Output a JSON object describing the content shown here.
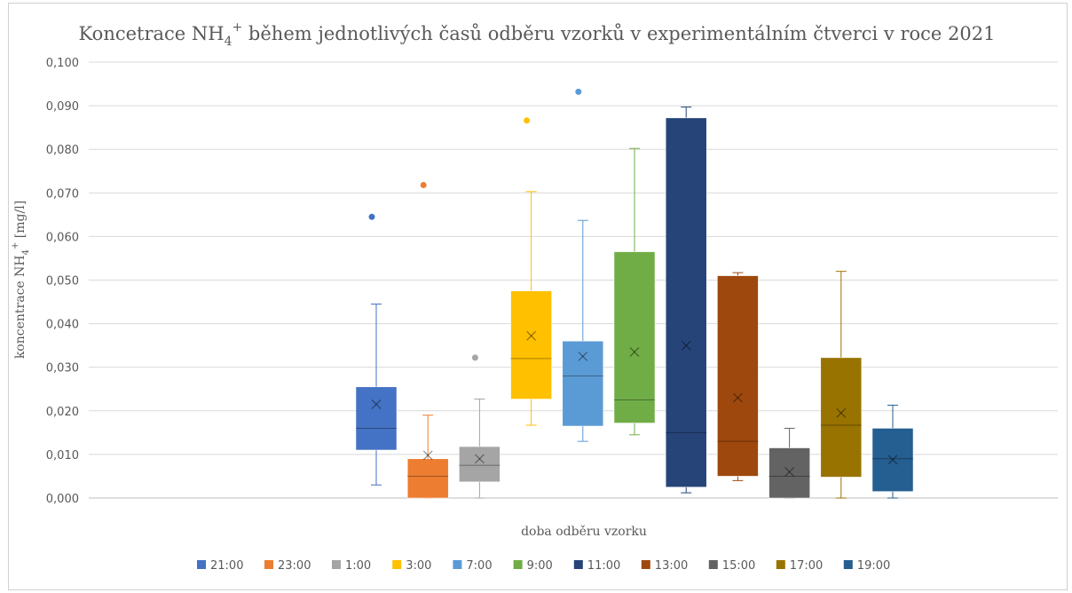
{
  "chart_data": {
    "type": "boxplot",
    "title_main": "Koncetrace NH",
    "title_sub": "4",
    "title_sup": "+",
    "title_rest": " během jednotlivých časů odběru vzorků v experimentálním čtverci v roce 2021",
    "xlabel": "doba odběru vzorku",
    "ylabel_main": "koncentrace NH",
    "ylabel_sub": "4",
    "ylabel_sup": "+",
    "ylabel_rest": " [mg/l]",
    "ylim": [
      0,
      0.1
    ],
    "yticks": [
      "0,000",
      "0,010",
      "0,020",
      "0,030",
      "0,040",
      "0,050",
      "0,060",
      "0,070",
      "0,080",
      "0,090",
      "0,100"
    ],
    "grid": true,
    "legend_position": "bottom",
    "series": [
      {
        "name": "21:00",
        "color": "#4472C4",
        "min": 0.003,
        "q1": 0.011,
        "median": 0.016,
        "q3": 0.0255,
        "max": 0.0445,
        "mean": 0.0215,
        "outliers": [
          0.0645
        ]
      },
      {
        "name": "23:00",
        "color": "#ED7D31",
        "min": 0.0,
        "q1": 0.0,
        "median": 0.005,
        "q3": 0.009,
        "max": 0.019,
        "mean": 0.0098,
        "outliers": [
          0.0718
        ]
      },
      {
        "name": "1:00",
        "color": "#A5A5A5",
        "min": 0.0,
        "q1": 0.0037,
        "median": 0.0075,
        "q3": 0.0118,
        "max": 0.0227,
        "mean": 0.009,
        "outliers": [
          0.0322
        ]
      },
      {
        "name": "3:00",
        "color": "#FFC000",
        "min": 0.0167,
        "q1": 0.0227,
        "median": 0.032,
        "q3": 0.0475,
        "max": 0.0703,
        "mean": 0.0372,
        "outliers": [
          0.0866
        ]
      },
      {
        "name": "7:00",
        "color": "#5B9BD5",
        "min": 0.013,
        "q1": 0.0165,
        "median": 0.028,
        "q3": 0.036,
        "max": 0.0637,
        "mean": 0.0325,
        "outliers": [
          0.0932
        ]
      },
      {
        "name": "9:00",
        "color": "#70AD47",
        "min": 0.0145,
        "q1": 0.0172,
        "median": 0.0225,
        "q3": 0.0565,
        "max": 0.0802,
        "mean": 0.0335,
        "outliers": []
      },
      {
        "name": "11:00",
        "color": "#264478",
        "min": 0.0012,
        "q1": 0.0025,
        "median": 0.015,
        "q3": 0.0872,
        "max": 0.0897,
        "mean": 0.035,
        "outliers": []
      },
      {
        "name": "13:00",
        "color": "#9E480E",
        "min": 0.004,
        "q1": 0.005,
        "median": 0.013,
        "q3": 0.051,
        "max": 0.0517,
        "mean": 0.023,
        "outliers": []
      },
      {
        "name": "15:00",
        "color": "#636363",
        "min": 0.0,
        "q1": 0.0,
        "median": 0.005,
        "q3": 0.0115,
        "max": 0.016,
        "mean": 0.006,
        "outliers": []
      },
      {
        "name": "17:00",
        "color": "#997300",
        "min": 0.0,
        "q1": 0.0048,
        "median": 0.0167,
        "q3": 0.0322,
        "max": 0.052,
        "mean": 0.0195,
        "outliers": []
      },
      {
        "name": "19:00",
        "color": "#255E91",
        "min": 0.0,
        "q1": 0.0015,
        "median": 0.009,
        "q3": 0.016,
        "max": 0.0213,
        "mean": 0.0088,
        "outliers": []
      }
    ]
  }
}
